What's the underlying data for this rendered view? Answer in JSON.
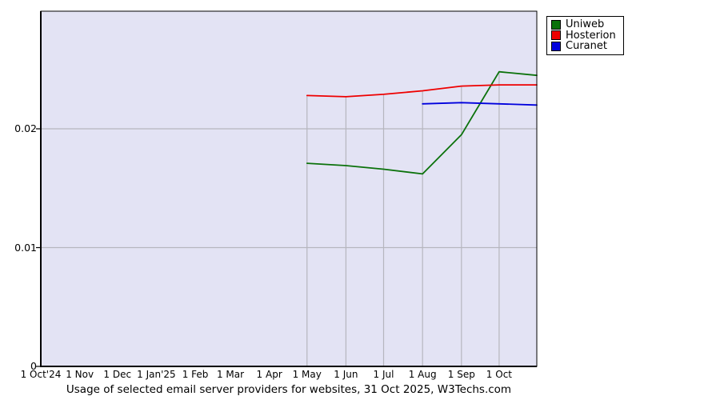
{
  "chart_data": {
    "type": "line",
    "title": "Usage of selected email server providers for websites, 31 Oct 2025, W3Techs.com",
    "x_axis": {
      "unit": "days since 1 Oct 2024",
      "total_days": 395,
      "ticks": [
        {
          "label": "1 Oct'24",
          "day": 0
        },
        {
          "label": "1 Nov",
          "day": 31
        },
        {
          "label": "1 Dec",
          "day": 61
        },
        {
          "label": "1 Jan'25",
          "day": 92
        },
        {
          "label": "1 Feb",
          "day": 123
        },
        {
          "label": "1 Mar",
          "day": 151
        },
        {
          "label": "1 Apr",
          "day": 182
        },
        {
          "label": "1 May",
          "day": 212
        },
        {
          "label": "1 Jun",
          "day": 243
        },
        {
          "label": "1 Jul",
          "day": 273
        },
        {
          "label": "1 Aug",
          "day": 304
        },
        {
          "label": "1 Sep",
          "day": 335
        },
        {
          "label": "1 Oct",
          "day": 365
        }
      ]
    },
    "y_axis": {
      "min": 0,
      "max": 0.0299,
      "ticks": [
        {
          "label": "0",
          "value": 0
        },
        {
          "label": "0.01",
          "value": 0.01
        },
        {
          "label": "0.02",
          "value": 0.02
        }
      ]
    },
    "drop_line_days": [
      212,
      243,
      273,
      304,
      335,
      365
    ],
    "series": [
      {
        "name": "Uniweb",
        "color": "#0b720b",
        "points": [
          [
            212,
            0.0171
          ],
          [
            243,
            0.0169
          ],
          [
            273,
            0.0166
          ],
          [
            304,
            0.0162
          ],
          [
            335,
            0.0195
          ],
          [
            365,
            0.0248
          ],
          [
            395,
            0.0245
          ]
        ]
      },
      {
        "name": "Hosterion",
        "color": "#ee0000",
        "points": [
          [
            212,
            0.0228
          ],
          [
            243,
            0.0227
          ],
          [
            273,
            0.0229
          ],
          [
            304,
            0.0232
          ],
          [
            335,
            0.0236
          ],
          [
            365,
            0.0237
          ],
          [
            395,
            0.0237
          ]
        ]
      },
      {
        "name": "Curanet",
        "color": "#0000dd",
        "points": [
          [
            304,
            0.0221
          ],
          [
            335,
            0.0222
          ],
          [
            365,
            0.0221
          ],
          [
            395,
            0.022
          ]
        ]
      }
    ],
    "legend": {
      "position": "top-right",
      "entries": [
        {
          "label": "Uniweb",
          "color": "#0b720b"
        },
        {
          "label": "Hosterion",
          "color": "#ee0000"
        },
        {
          "label": "Curanet",
          "color": "#0000dd"
        }
      ]
    },
    "colors": {
      "plot_bg": "#e3e3f4",
      "grid": "#b6b6be",
      "axis": "#000000"
    },
    "layout_hints": {
      "grid": "horizontal full-width at 0.01 and 0.02; vertical drop lines only at data months up to topmost series",
      "legend_position": "outside plot, top-right"
    }
  }
}
